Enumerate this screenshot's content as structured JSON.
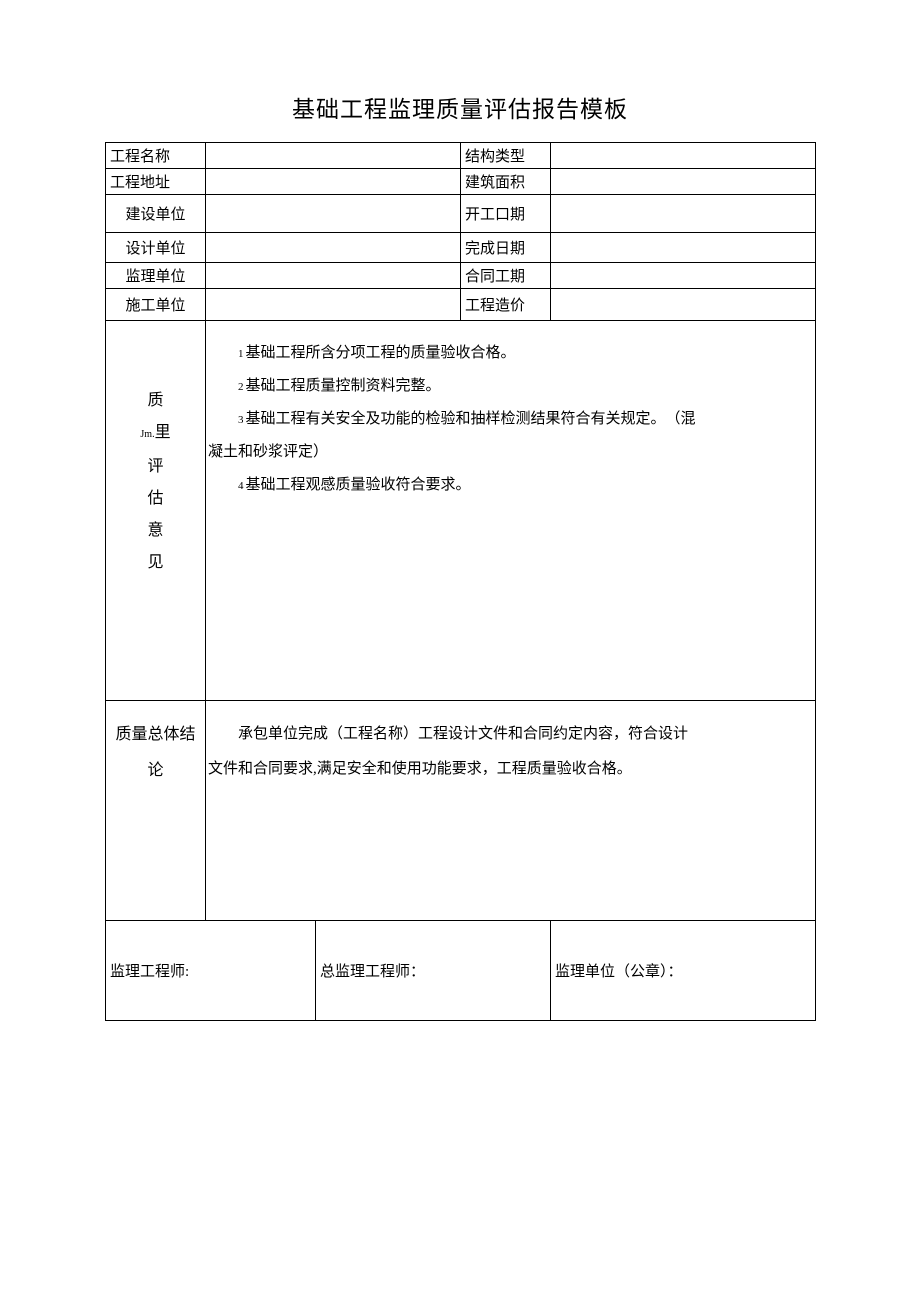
{
  "title": "基础工程监理质量评估报告模板",
  "header_rows": [
    {
      "label1": "工程名称",
      "value1": "",
      "label2": "结构类型",
      "value2": "",
      "h": "row-h1",
      "align1": "left"
    },
    {
      "label1": "工程地址",
      "value1": "",
      "label2": "建筑面积",
      "value2": "",
      "h": "row-h2",
      "align1": "left"
    },
    {
      "label1": "建设单位",
      "value1": "",
      "label2": "开工口期",
      "value2": "",
      "h": "row-h3",
      "align1": "center"
    },
    {
      "label1": "设计单位",
      "value1": "",
      "label2": "完成日期",
      "value2": "",
      "h": "row-h4",
      "align1": "center"
    },
    {
      "label1": "监理单位",
      "value1": "",
      "label2": "合同工期",
      "value2": "",
      "h": "row-h5",
      "align1": "center"
    },
    {
      "label1": "施工单位",
      "value1": "",
      "label2": "工程造价",
      "value2": "",
      "h": "row-h6",
      "align1": "center"
    }
  ],
  "opinion_label": {
    "chars": [
      "质",
      "",
      "评",
      "估",
      "意",
      "见"
    ],
    "special_line": {
      "small": "Jm.",
      "char": "里"
    }
  },
  "opinion_lines": [
    {
      "num": "1",
      "text": "基础工程所含分项工程的质量验收合格。"
    },
    {
      "num": "2",
      "text": "基础工程质量控制资料完整。"
    },
    {
      "num": "3",
      "text": "基础工程有关安全及功能的检验和抽样检测结果符合有关规定。　（混"
    },
    {
      "wrap": "凝土和砂浆评定）"
    },
    {
      "num": "4",
      "text": "基础工程观感质量验收符合要求。"
    }
  ],
  "conclusion_label_l1": "质量总体结",
  "conclusion_label_l2": "论",
  "conclusion_text_l1": "承包单位完成（工程名称）工程设计文件和合同约定内容，符合设计",
  "conclusion_text_l2": "文件和合同要求,满足安全和使用功能要求，工程质量验收合格。",
  "signatures": {
    "s1": "监理工程师:",
    "s2": "总监理工程师：",
    "s3": "监理单位（公章）："
  },
  "colors": {
    "border": "#000000",
    "background": "#ffffff",
    "text": "#000000"
  }
}
